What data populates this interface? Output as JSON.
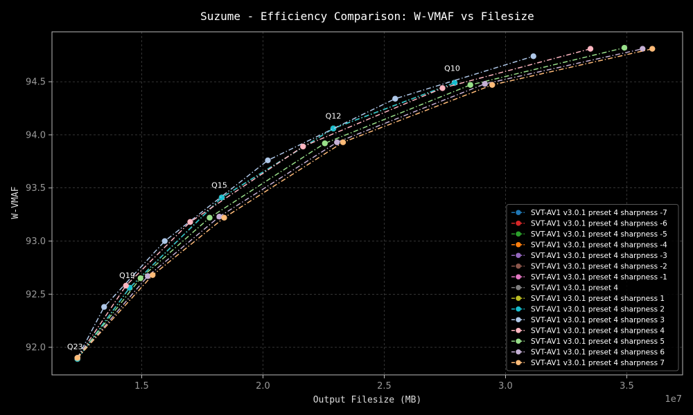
{
  "chart_data": {
    "type": "line",
    "title": "Suzume - Efficiency Comparison: W-VMAF vs Filesize",
    "xlabel": "Output Filesize (MB)",
    "ylabel": "W-VMAF",
    "x_offset_label": "1e7",
    "xlim": [
      1.13,
      3.73
    ],
    "ylim": [
      91.74,
      94.97
    ],
    "x_ticks": [
      1.5,
      2.0,
      2.5,
      3.0,
      3.5
    ],
    "x_tick_labels": [
      "1.5",
      "2.0",
      "2.5",
      "3.0",
      "3.5"
    ],
    "y_ticks": [
      92.0,
      92.5,
      93.0,
      93.5,
      94.0,
      94.5
    ],
    "y_tick_labels": [
      "92.0",
      "92.5",
      "93.0",
      "93.5",
      "94.0",
      "94.5"
    ],
    "grid": true,
    "legend_position": "bottom-right",
    "annotations": [
      {
        "text": "Q23",
        "x": 1.225,
        "y": 91.93
      },
      {
        "text": "Q19",
        "x": 1.44,
        "y": 92.6
      },
      {
        "text": "Q15",
        "x": 1.82,
        "y": 93.45
      },
      {
        "text": "Q12",
        "x": 2.29,
        "y": 94.1
      },
      {
        "text": "Q10",
        "x": 2.78,
        "y": 94.55
      }
    ],
    "series": [
      {
        "name": "SVT-AV1 v3.0.1 preset 4 sharpness -7",
        "color": "#1f77b4",
        "x": [
          1.235,
          1.45,
          1.83,
          2.29,
          2.79
        ],
        "y": [
          91.89,
          92.56,
          93.41,
          94.06,
          94.49
        ]
      },
      {
        "name": "SVT-AV1 v3.0.1 preset 4 sharpness -6",
        "color": "#d62728",
        "x": [
          1.235,
          1.45,
          1.83,
          2.29,
          2.79
        ],
        "y": [
          91.89,
          92.56,
          93.41,
          94.06,
          94.49
        ]
      },
      {
        "name": "SVT-AV1 v3.0.1 preset 4 sharpness -5",
        "color": "#2ca02c",
        "x": [
          1.235,
          1.45,
          1.83,
          2.29,
          2.79
        ],
        "y": [
          91.89,
          92.56,
          93.41,
          94.06,
          94.49
        ]
      },
      {
        "name": "SVT-AV1 v3.0.1 preset 4 sharpness -4",
        "color": "#ff7f0e",
        "x": [
          1.235,
          1.45,
          1.83,
          2.29,
          2.79
        ],
        "y": [
          91.89,
          92.56,
          93.41,
          94.06,
          94.49
        ]
      },
      {
        "name": "SVT-AV1 v3.0.1 preset 4 sharpness -3",
        "color": "#9467bd",
        "x": [
          1.235,
          1.45,
          1.83,
          2.29,
          2.79
        ],
        "y": [
          91.89,
          92.56,
          93.41,
          94.06,
          94.49
        ]
      },
      {
        "name": "SVT-AV1 v3.0.1 preset 4 sharpness -2",
        "color": "#8c564b",
        "x": [
          1.235,
          1.45,
          1.83,
          2.29,
          2.79
        ],
        "y": [
          91.89,
          92.56,
          93.41,
          94.06,
          94.49
        ]
      },
      {
        "name": "SVT-AV1 v3.0.1 preset 4 sharpness -1",
        "color": "#e377c2",
        "x": [
          1.235,
          1.45,
          1.83,
          2.29,
          2.79
        ],
        "y": [
          91.89,
          92.56,
          93.41,
          94.06,
          94.49
        ]
      },
      {
        "name": "SVT-AV1 v3.0.1 preset 4",
        "color": "#7f7f7f",
        "x": [
          1.235,
          1.45,
          1.83,
          2.29,
          2.79
        ],
        "y": [
          91.89,
          92.56,
          93.41,
          94.06,
          94.49
        ]
      },
      {
        "name": "SVT-AV1 v3.0.1 preset 4 sharpness 1",
        "color": "#bcbd22",
        "x": [
          1.235,
          1.45,
          1.83,
          2.29,
          2.79
        ],
        "y": [
          91.89,
          92.56,
          93.41,
          94.06,
          94.49
        ]
      },
      {
        "name": "SVT-AV1 v3.0.1 preset 4 sharpness 2",
        "color": "#17becf",
        "x": [
          1.235,
          1.45,
          1.83,
          2.29,
          2.79
        ],
        "y": [
          91.89,
          92.56,
          93.41,
          94.06,
          94.49
        ]
      },
      {
        "name": "SVT-AV1 v3.0.1 preset 4 sharpness 3",
        "color": "#aec7e8",
        "x": [
          1.235,
          1.345,
          1.595,
          2.02,
          2.545,
          3.115
        ],
        "y": [
          91.9,
          92.38,
          93.0,
          93.76,
          94.34,
          94.74
        ]
      },
      {
        "name": "SVT-AV1 v3.0.1 preset 4 sharpness 4",
        "color": "#ffb6c1",
        "x": [
          1.235,
          1.435,
          1.7,
          2.165,
          2.74,
          3.35
        ],
        "y": [
          91.9,
          92.58,
          93.18,
          93.89,
          94.44,
          94.81
        ]
      },
      {
        "name": "SVT-AV1 v3.0.1 preset 4 sharpness 5",
        "color": "#98df8a",
        "x": [
          1.235,
          1.495,
          1.78,
          2.255,
          2.855,
          3.49
        ],
        "y": [
          91.9,
          92.65,
          93.22,
          93.92,
          94.47,
          94.82
        ]
      },
      {
        "name": "SVT-AV1 v3.0.1 preset 4 sharpness 6",
        "color": "#c5b0d5",
        "x": [
          1.235,
          1.525,
          1.82,
          2.305,
          2.915,
          3.565
        ],
        "y": [
          91.9,
          92.67,
          93.23,
          93.93,
          94.48,
          94.81
        ]
      },
      {
        "name": "SVT-AV1 v3.0.1 preset 4 sharpness 7",
        "color": "#ffbb78",
        "x": [
          1.235,
          1.545,
          1.84,
          2.33,
          2.945,
          3.605
        ],
        "y": [
          91.9,
          92.68,
          93.22,
          93.93,
          94.47,
          94.81
        ]
      }
    ]
  }
}
